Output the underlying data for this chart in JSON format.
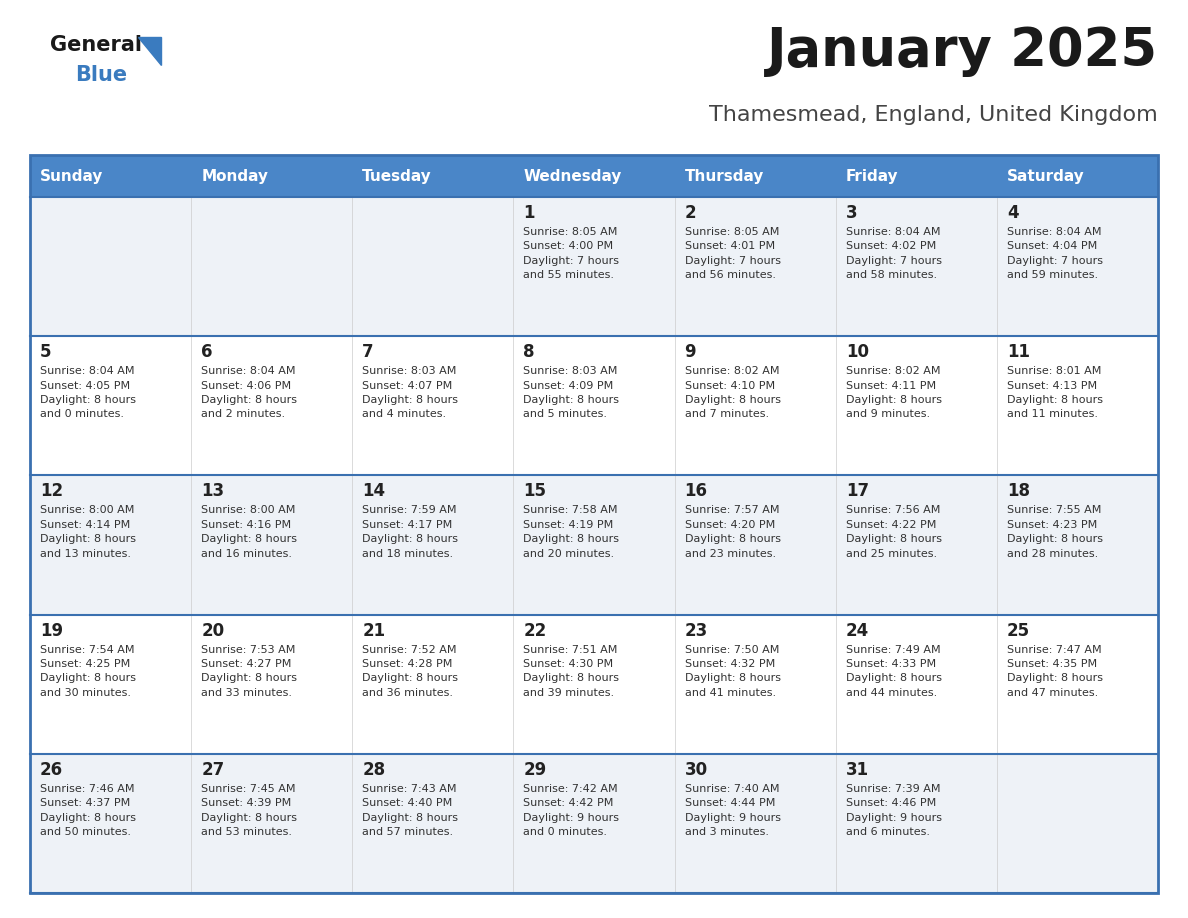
{
  "title": "January 2025",
  "subtitle": "Thamesmead, England, United Kingdom",
  "header_bg": "#4a86c8",
  "header_text": "#ffffff",
  "odd_row_bg": "#eef2f7",
  "even_row_bg": "#ffffff",
  "border_color": "#3a70b0",
  "days_of_week": [
    "Sunday",
    "Monday",
    "Tuesday",
    "Wednesday",
    "Thursday",
    "Friday",
    "Saturday"
  ],
  "calendar": [
    [
      {
        "day": "",
        "info": ""
      },
      {
        "day": "",
        "info": ""
      },
      {
        "day": "",
        "info": ""
      },
      {
        "day": "1",
        "info": "Sunrise: 8:05 AM\nSunset: 4:00 PM\nDaylight: 7 hours\nand 55 minutes."
      },
      {
        "day": "2",
        "info": "Sunrise: 8:05 AM\nSunset: 4:01 PM\nDaylight: 7 hours\nand 56 minutes."
      },
      {
        "day": "3",
        "info": "Sunrise: 8:04 AM\nSunset: 4:02 PM\nDaylight: 7 hours\nand 58 minutes."
      },
      {
        "day": "4",
        "info": "Sunrise: 8:04 AM\nSunset: 4:04 PM\nDaylight: 7 hours\nand 59 minutes."
      }
    ],
    [
      {
        "day": "5",
        "info": "Sunrise: 8:04 AM\nSunset: 4:05 PM\nDaylight: 8 hours\nand 0 minutes."
      },
      {
        "day": "6",
        "info": "Sunrise: 8:04 AM\nSunset: 4:06 PM\nDaylight: 8 hours\nand 2 minutes."
      },
      {
        "day": "7",
        "info": "Sunrise: 8:03 AM\nSunset: 4:07 PM\nDaylight: 8 hours\nand 4 minutes."
      },
      {
        "day": "8",
        "info": "Sunrise: 8:03 AM\nSunset: 4:09 PM\nDaylight: 8 hours\nand 5 minutes."
      },
      {
        "day": "9",
        "info": "Sunrise: 8:02 AM\nSunset: 4:10 PM\nDaylight: 8 hours\nand 7 minutes."
      },
      {
        "day": "10",
        "info": "Sunrise: 8:02 AM\nSunset: 4:11 PM\nDaylight: 8 hours\nand 9 minutes."
      },
      {
        "day": "11",
        "info": "Sunrise: 8:01 AM\nSunset: 4:13 PM\nDaylight: 8 hours\nand 11 minutes."
      }
    ],
    [
      {
        "day": "12",
        "info": "Sunrise: 8:00 AM\nSunset: 4:14 PM\nDaylight: 8 hours\nand 13 minutes."
      },
      {
        "day": "13",
        "info": "Sunrise: 8:00 AM\nSunset: 4:16 PM\nDaylight: 8 hours\nand 16 minutes."
      },
      {
        "day": "14",
        "info": "Sunrise: 7:59 AM\nSunset: 4:17 PM\nDaylight: 8 hours\nand 18 minutes."
      },
      {
        "day": "15",
        "info": "Sunrise: 7:58 AM\nSunset: 4:19 PM\nDaylight: 8 hours\nand 20 minutes."
      },
      {
        "day": "16",
        "info": "Sunrise: 7:57 AM\nSunset: 4:20 PM\nDaylight: 8 hours\nand 23 minutes."
      },
      {
        "day": "17",
        "info": "Sunrise: 7:56 AM\nSunset: 4:22 PM\nDaylight: 8 hours\nand 25 minutes."
      },
      {
        "day": "18",
        "info": "Sunrise: 7:55 AM\nSunset: 4:23 PM\nDaylight: 8 hours\nand 28 minutes."
      }
    ],
    [
      {
        "day": "19",
        "info": "Sunrise: 7:54 AM\nSunset: 4:25 PM\nDaylight: 8 hours\nand 30 minutes."
      },
      {
        "day": "20",
        "info": "Sunrise: 7:53 AM\nSunset: 4:27 PM\nDaylight: 8 hours\nand 33 minutes."
      },
      {
        "day": "21",
        "info": "Sunrise: 7:52 AM\nSunset: 4:28 PM\nDaylight: 8 hours\nand 36 minutes."
      },
      {
        "day": "22",
        "info": "Sunrise: 7:51 AM\nSunset: 4:30 PM\nDaylight: 8 hours\nand 39 minutes."
      },
      {
        "day": "23",
        "info": "Sunrise: 7:50 AM\nSunset: 4:32 PM\nDaylight: 8 hours\nand 41 minutes."
      },
      {
        "day": "24",
        "info": "Sunrise: 7:49 AM\nSunset: 4:33 PM\nDaylight: 8 hours\nand 44 minutes."
      },
      {
        "day": "25",
        "info": "Sunrise: 7:47 AM\nSunset: 4:35 PM\nDaylight: 8 hours\nand 47 minutes."
      }
    ],
    [
      {
        "day": "26",
        "info": "Sunrise: 7:46 AM\nSunset: 4:37 PM\nDaylight: 8 hours\nand 50 minutes."
      },
      {
        "day": "27",
        "info": "Sunrise: 7:45 AM\nSunset: 4:39 PM\nDaylight: 8 hours\nand 53 minutes."
      },
      {
        "day": "28",
        "info": "Sunrise: 7:43 AM\nSunset: 4:40 PM\nDaylight: 8 hours\nand 57 minutes."
      },
      {
        "day": "29",
        "info": "Sunrise: 7:42 AM\nSunset: 4:42 PM\nDaylight: 9 hours\nand 0 minutes."
      },
      {
        "day": "30",
        "info": "Sunrise: 7:40 AM\nSunset: 4:44 PM\nDaylight: 9 hours\nand 3 minutes."
      },
      {
        "day": "31",
        "info": "Sunrise: 7:39 AM\nSunset: 4:46 PM\nDaylight: 9 hours\nand 6 minutes."
      },
      {
        "day": "",
        "info": ""
      }
    ]
  ],
  "logo_general_color": "#1a1a1a",
  "logo_blue_color": "#3a7bbf",
  "title_color": "#1a1a1a",
  "subtitle_color": "#444444",
  "fig_width": 11.88,
  "fig_height": 9.18,
  "dpi": 100
}
